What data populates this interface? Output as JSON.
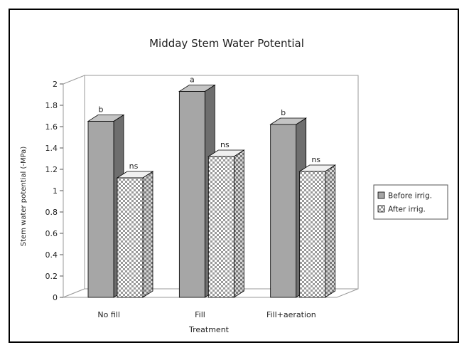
{
  "chart_data": {
    "type": "bar",
    "title": "Midday Stem Water Potential",
    "xlabel": "Treatment",
    "ylabel": "Stem water potential (-MPa)",
    "ylim": [
      0,
      2
    ],
    "yticks": [
      "0",
      "0.2",
      "0.4",
      "0.6",
      "0.8",
      "1",
      "1.2",
      "1.4",
      "1.6",
      "1.8",
      "2"
    ],
    "categories": [
      "No fill",
      "Fill",
      "Fill+aeration"
    ],
    "series": [
      {
        "name": "Before irrig.",
        "values": [
          1.65,
          1.93,
          1.62
        ],
        "labels": [
          "b",
          "a",
          "b"
        ],
        "color": "#a6a6a6",
        "pattern": "solid"
      },
      {
        "name": "After irrig.",
        "values": [
          1.12,
          1.32,
          1.18
        ],
        "labels": [
          "ns",
          "ns",
          "ns"
        ],
        "color": "#ffffff",
        "pattern": "checker"
      }
    ],
    "legend_position": "right",
    "grid": false,
    "style": "3d"
  }
}
